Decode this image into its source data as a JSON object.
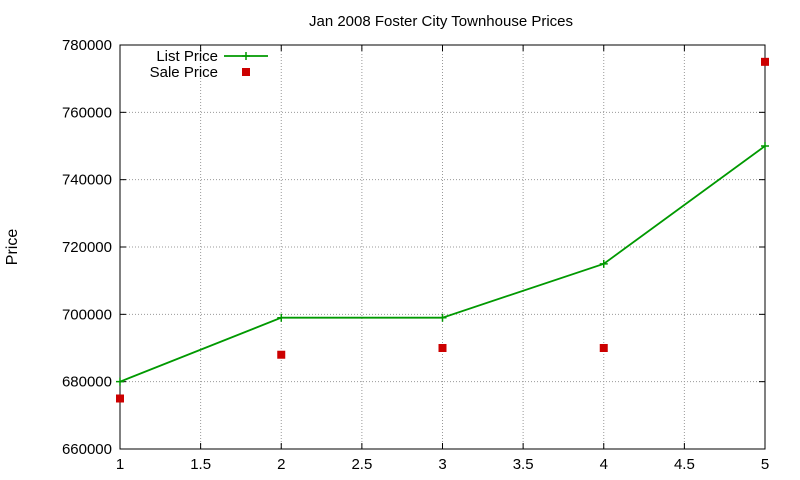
{
  "chart_data": {
    "type": "line",
    "title": "Jan 2008 Foster City Townhouse Prices",
    "xlabel": "",
    "ylabel": "Price",
    "xlim": [
      1,
      5
    ],
    "ylim": [
      660000,
      780000
    ],
    "xticks": [
      "1",
      "1.5",
      "2",
      "2.5",
      "3",
      "3.5",
      "4",
      "4.5",
      "5"
    ],
    "yticks": [
      "660000",
      "680000",
      "700000",
      "720000",
      "740000",
      "760000",
      "780000"
    ],
    "grid": true,
    "legend_position": "top-left",
    "series": [
      {
        "name": "List Price",
        "style": "line-with-plus-markers",
        "color": "#009900",
        "x": [
          1,
          2,
          3,
          4,
          5
        ],
        "y": [
          680000,
          699000,
          699000,
          715000,
          750000
        ]
      },
      {
        "name": "Sale Price",
        "style": "square-points",
        "color": "#cc0000",
        "x": [
          1,
          2,
          3,
          4,
          5
        ],
        "y": [
          675000,
          688000,
          690000,
          690000,
          775000
        ]
      }
    ]
  }
}
